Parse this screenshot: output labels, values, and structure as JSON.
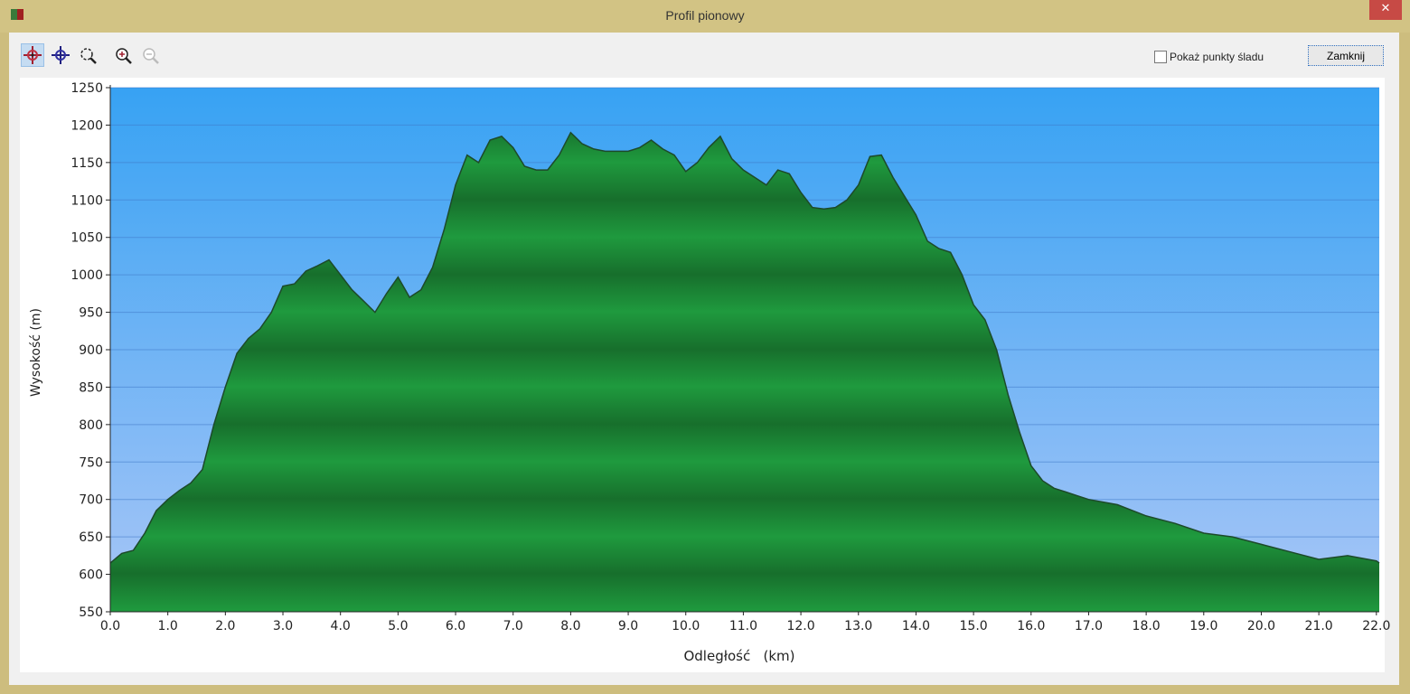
{
  "window": {
    "title": "Profil pionowy",
    "close_label": "✕"
  },
  "toolbar": {
    "tools": [
      {
        "icon": "crosshair-red-icon",
        "active": true
      },
      {
        "icon": "crosshair-blue-icon",
        "active": false
      },
      {
        "icon": "zoom-region-icon",
        "active": false
      },
      {
        "icon": "zoom-in-icon",
        "active": false
      },
      {
        "icon": "zoom-out-icon",
        "active": false,
        "disabled": true
      }
    ],
    "show_points_label": "Pokaż punkty śladu",
    "show_points_checked": false,
    "close_button": "Zamknij"
  },
  "chart_data": {
    "type": "area",
    "title": "",
    "xlabel": "Odległość   (km)",
    "ylabel": "Wysokość (m)",
    "xlim": [
      0,
      22.05
    ],
    "ylim": [
      550,
      1250
    ],
    "xticks": [
      "0.0",
      "1.0",
      "2.0",
      "3.0",
      "4.0",
      "5.0",
      "6.0",
      "7.0",
      "8.0",
      "9.0",
      "10.0",
      "11.0",
      "12.0",
      "13.0",
      "14.0",
      "15.0",
      "16.0",
      "17.0",
      "18.0",
      "19.0",
      "20.0",
      "21.0",
      "22.0"
    ],
    "yticks": [
      "550",
      "600",
      "650",
      "700",
      "750",
      "800",
      "850",
      "900",
      "950",
      "1000",
      "1050",
      "1100",
      "1150",
      "1200",
      "1250"
    ],
    "grid": true,
    "colors": {
      "fill": "#1f9a3e",
      "fill_dark": "#176f2c",
      "sky_top": "#37a2f3",
      "sky_bottom": "#a9c6f7",
      "line": "#1d4a2a"
    },
    "x": [
      0,
      0.2,
      0.4,
      0.6,
      0.8,
      1.0,
      1.2,
      1.4,
      1.6,
      1.8,
      2.0,
      2.2,
      2.4,
      2.6,
      2.8,
      3.0,
      3.2,
      3.4,
      3.6,
      3.8,
      4.0,
      4.2,
      4.4,
      4.6,
      4.8,
      5.0,
      5.2,
      5.4,
      5.6,
      5.8,
      6.0,
      6.2,
      6.4,
      6.6,
      6.8,
      7.0,
      7.2,
      7.4,
      7.6,
      7.8,
      8.0,
      8.2,
      8.4,
      8.6,
      8.8,
      9.0,
      9.2,
      9.4,
      9.6,
      9.8,
      10.0,
      10.2,
      10.4,
      10.6,
      10.8,
      11.0,
      11.2,
      11.4,
      11.6,
      11.8,
      12.0,
      12.2,
      12.4,
      12.6,
      12.8,
      13.0,
      13.2,
      13.4,
      13.6,
      13.8,
      14.0,
      14.2,
      14.4,
      14.6,
      14.8,
      15.0,
      15.2,
      15.4,
      15.6,
      15.8,
      16.0,
      16.2,
      16.4,
      16.6,
      16.8,
      17.0,
      17.5,
      18.0,
      18.5,
      19.0,
      19.5,
      20.0,
      20.5,
      21.0,
      21.5,
      22.0,
      22.05
    ],
    "y": [
      615,
      628,
      632,
      655,
      685,
      700,
      712,
      722,
      740,
      800,
      850,
      895,
      915,
      928,
      950,
      985,
      988,
      1005,
      1012,
      1020,
      1000,
      980,
      965,
      950,
      975,
      997,
      970,
      980,
      1010,
      1060,
      1120,
      1160,
      1150,
      1180,
      1185,
      1170,
      1145,
      1140,
      1140,
      1160,
      1190,
      1175,
      1168,
      1165,
      1165,
      1165,
      1170,
      1180,
      1168,
      1160,
      1138,
      1150,
      1170,
      1185,
      1155,
      1140,
      1130,
      1120,
      1140,
      1135,
      1110,
      1090,
      1088,
      1090,
      1100,
      1120,
      1158,
      1160,
      1130,
      1105,
      1080,
      1045,
      1035,
      1030,
      1000,
      960,
      940,
      900,
      840,
      790,
      745,
      725,
      715,
      710,
      705,
      700,
      693,
      678,
      668,
      655,
      650,
      640,
      630,
      620,
      625,
      618,
      615
    ]
  }
}
